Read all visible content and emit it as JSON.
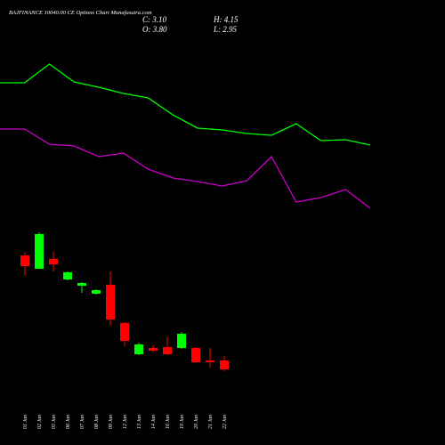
{
  "chart_data": [
    {
      "type": "candlestick",
      "title": "BAJFINANCE 10040.00 CE Options Chart Munafasutra.com",
      "ohlc_labels": {
        "close": "C: 3.10",
        "high": "H: 4.15",
        "open": "O: 3.80",
        "low": "L: 2.95"
      },
      "categories": [
        "01 Jun",
        "02 Jun",
        "05 Jun",
        "06 Jun",
        "07 Jun",
        "08 Jun",
        "09 Jun",
        "12 Jun",
        "13 Jun",
        "14 Jun",
        "16 Jun",
        "19 Jun",
        "20 Jun",
        "21 Jun",
        "22 Jun"
      ],
      "open": [
        12.06,
        11.01,
        11.78,
        10.17,
        9.68,
        9.05,
        9.75,
        6.74,
        4.29,
        4.78,
        4.85,
        4.78,
        4.78,
        3.8,
        3.8
      ],
      "high": [
        12.34,
        13.88,
        12.34,
        10.8,
        9.96,
        9.4,
        10.8,
        6.81,
        5.2,
        4.99,
        5.69,
        6.04,
        4.85,
        4.78,
        4.15
      ],
      "low": [
        10.45,
        11.01,
        10.8,
        10.1,
        9.12,
        8.98,
        6.53,
        4.92,
        4.22,
        4.43,
        4.22,
        4.71,
        3.59,
        3.24,
        2.95
      ],
      "close": [
        11.22,
        13.74,
        11.36,
        10.73,
        9.89,
        9.33,
        7.02,
        5.34,
        5.06,
        4.57,
        4.29,
        5.9,
        3.66,
        3.66,
        3.1
      ],
      "up_color": "#00ff00",
      "down_color": "#ff0000",
      "ylim": [
        2,
        15
      ]
    },
    {
      "type": "line",
      "series": [
        {
          "color": "#00ff00",
          "values": [
            157,
            157,
            178,
            158,
            152,
            145,
            140,
            121,
            106,
            104,
            100,
            98,
            111,
            92,
            93,
            87
          ]
        },
        {
          "color": "#cc00cc",
          "values": [
            105,
            105,
            88,
            86,
            74,
            78,
            60,
            50,
            46,
            41,
            47,
            74,
            23,
            28,
            37,
            16
          ]
        }
      ],
      "ylim": [
        0,
        200
      ]
    }
  ]
}
